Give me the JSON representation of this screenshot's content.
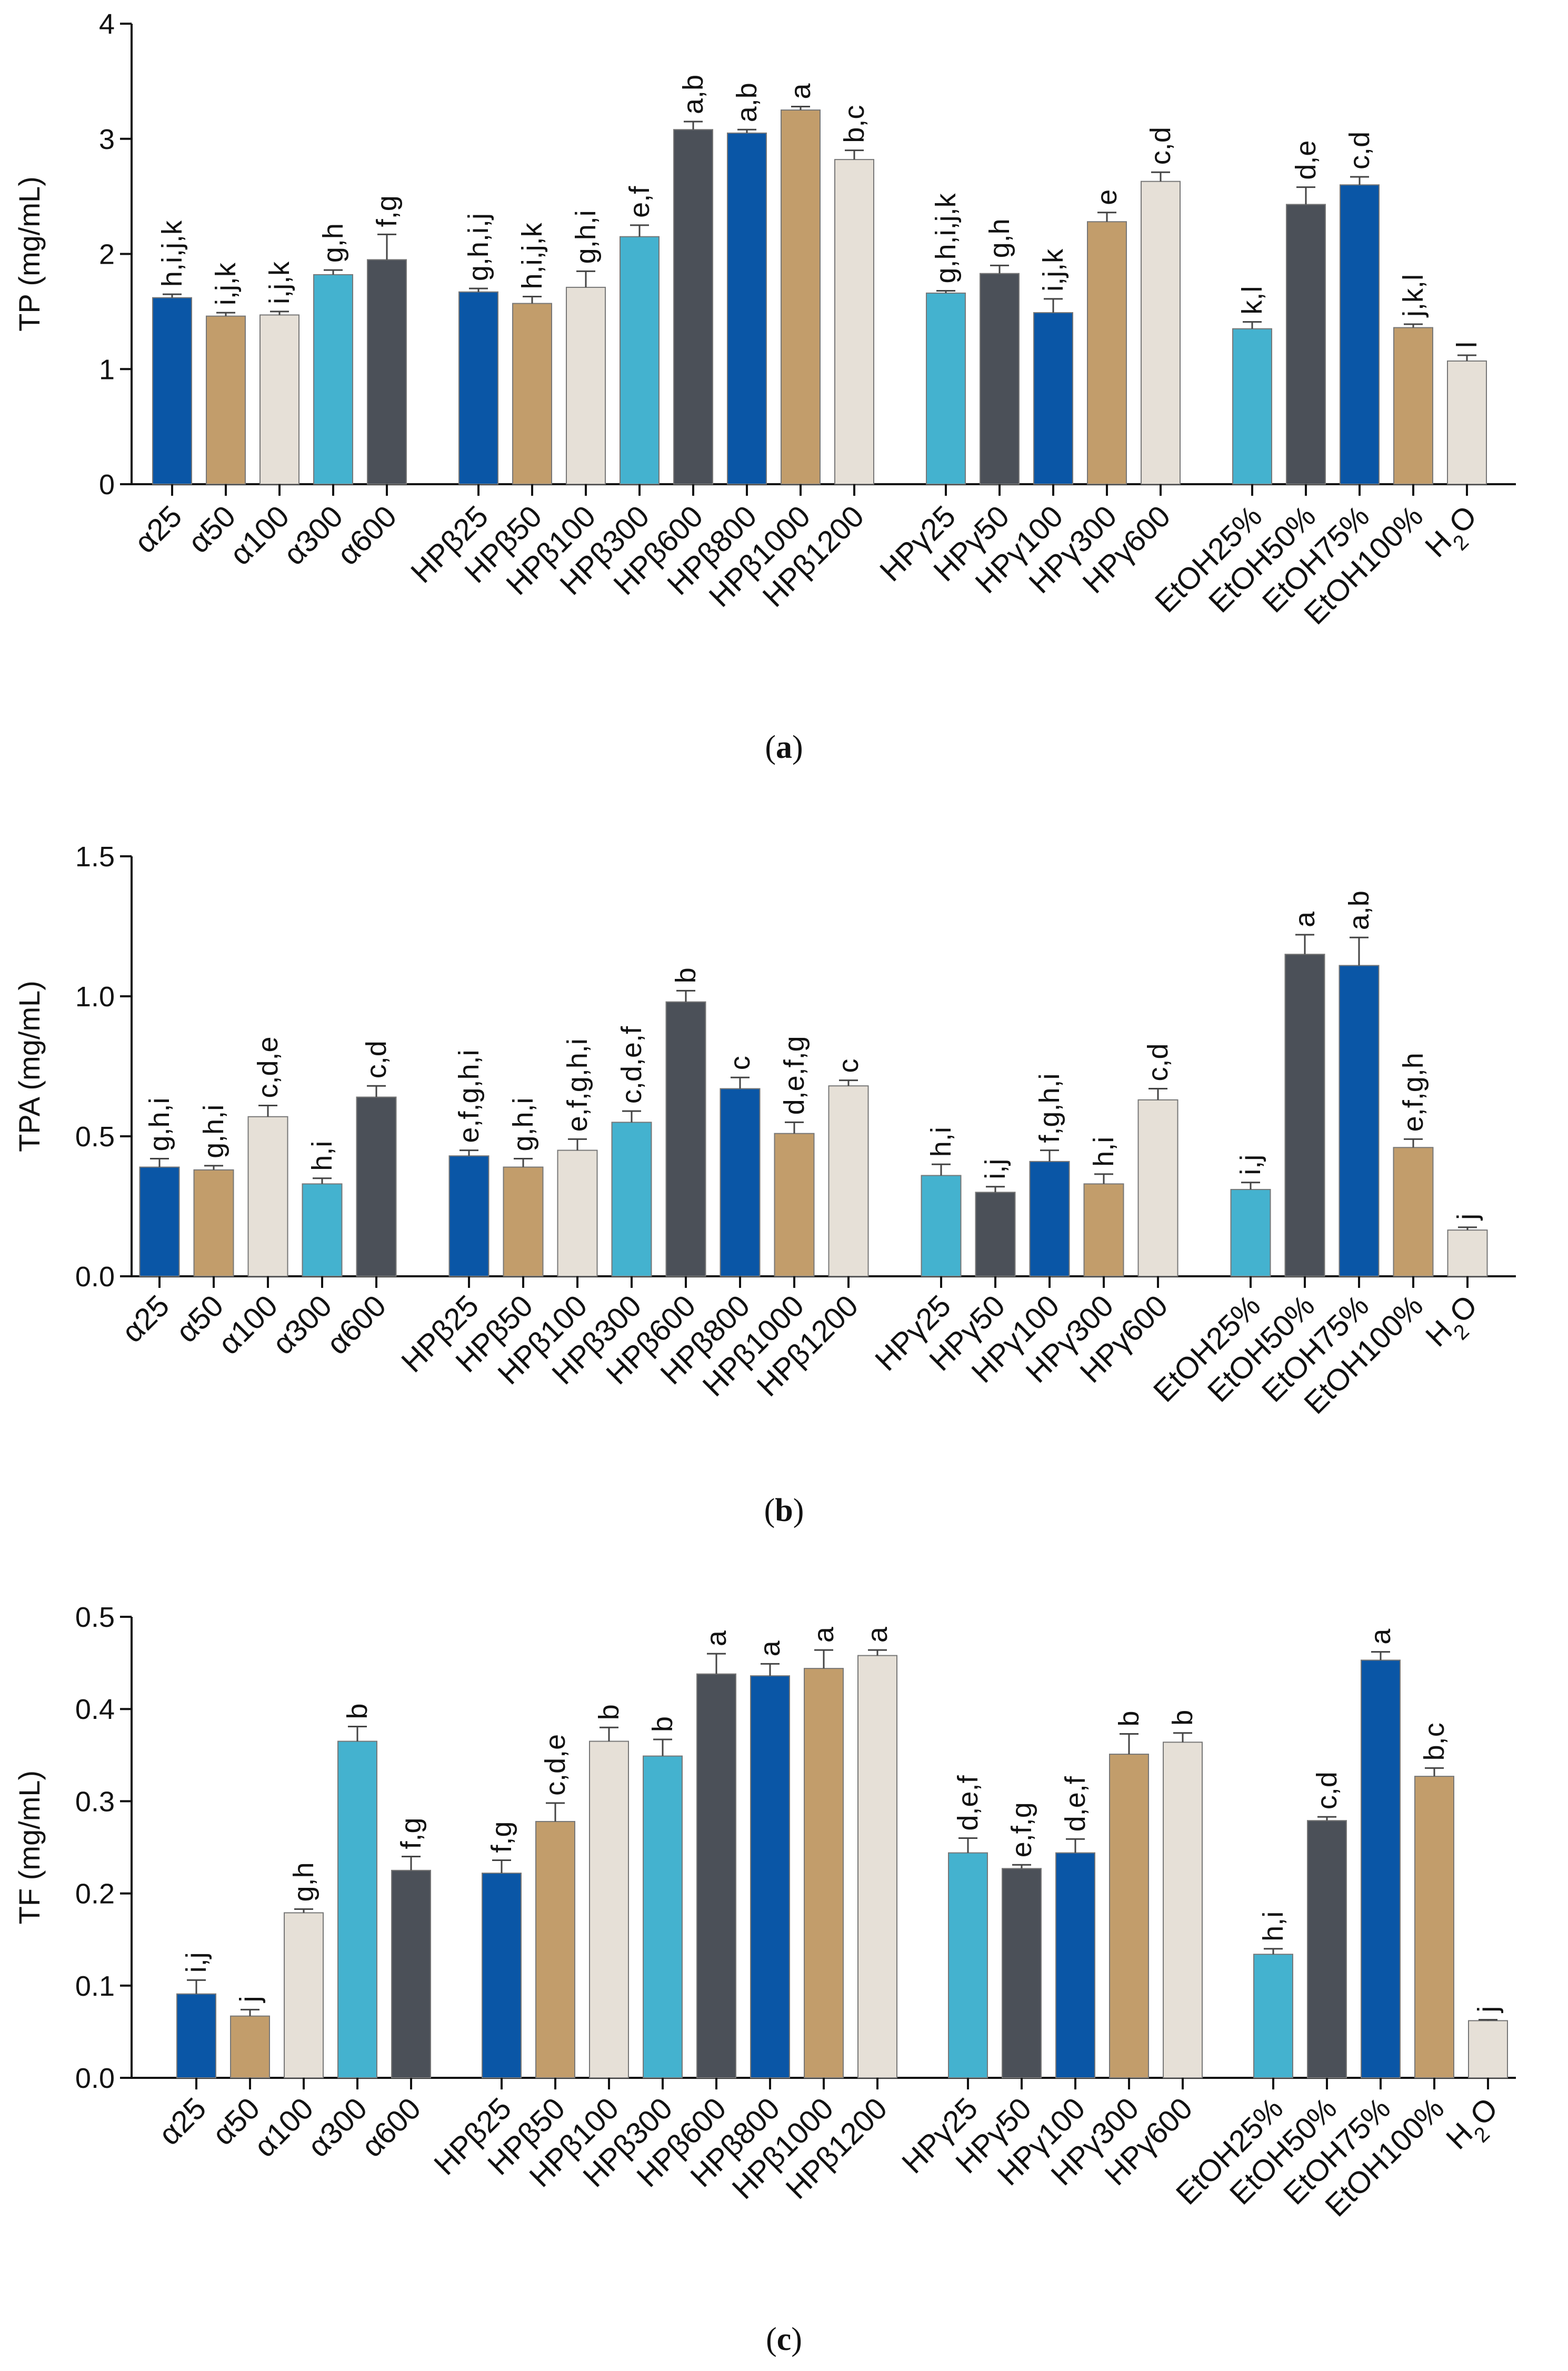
{
  "colors": {
    "dark_blue": "#0a56a6",
    "tan": "#c29d6b",
    "beige": "#e6e0d7",
    "light_blue": "#44b2cf",
    "dark_gray": "#4b5058"
  },
  "chart_data": [
    {
      "type": "bar",
      "panel": "a",
      "caption_open": "(",
      "caption_letter": "a",
      "caption_close": ")",
      "ylabel": "TP (mg/mL)",
      "ylim": [
        0,
        4
      ],
      "yticks": [
        "0",
        "1",
        "2",
        "3",
        "4"
      ],
      "groups": [
        {
          "bars": [
            {
              "label": "α25",
              "value": 1.62,
              "err": 0.03,
              "sig": "h,i,j,k",
              "color": "dark_blue"
            },
            {
              "label": "α50",
              "value": 1.46,
              "err": 0.03,
              "sig": "i,j,k",
              "color": "tan"
            },
            {
              "label": "α100",
              "value": 1.47,
              "err": 0.03,
              "sig": "i,j,k",
              "color": "beige"
            },
            {
              "label": "α300",
              "value": 1.82,
              "err": 0.04,
              "sig": "g,h",
              "color": "light_blue"
            },
            {
              "label": "α600",
              "value": 1.95,
              "err": 0.22,
              "sig": "f,g",
              "color": "dark_gray"
            }
          ]
        },
        {
          "bars": [
            {
              "label": "HPβ25",
              "value": 1.67,
              "err": 0.03,
              "sig": "g,h,i,j",
              "color": "dark_blue"
            },
            {
              "label": "HPβ50",
              "value": 1.57,
              "err": 0.06,
              "sig": "h,i,j,k",
              "color": "tan"
            },
            {
              "label": "HPβ100",
              "value": 1.71,
              "err": 0.14,
              "sig": "g,h,i",
              "color": "beige"
            },
            {
              "label": "HPβ300",
              "value": 2.15,
              "err": 0.1,
              "sig": "e,f",
              "color": "light_blue"
            },
            {
              "label": "HPβ600",
              "value": 3.08,
              "err": 0.07,
              "sig": "a,b",
              "color": "dark_gray"
            },
            {
              "label": "HPβ800",
              "value": 3.05,
              "err": 0.03,
              "sig": "a,b",
              "color": "dark_blue"
            },
            {
              "label": "HPβ1000",
              "value": 3.25,
              "err": 0.03,
              "sig": "a",
              "color": "tan"
            },
            {
              "label": "HPβ1200",
              "value": 2.82,
              "err": 0.08,
              "sig": "b,c",
              "color": "beige"
            }
          ]
        },
        {
          "bars": [
            {
              "label": "HPγ25",
              "value": 1.66,
              "err": 0.02,
              "sig": "g,h,i,j,k",
              "color": "light_blue"
            },
            {
              "label": "HPγ50",
              "value": 1.83,
              "err": 0.07,
              "sig": "g,h",
              "color": "dark_gray"
            },
            {
              "label": "HPγ100",
              "value": 1.49,
              "err": 0.12,
              "sig": "i,j,k",
              "color": "dark_blue"
            },
            {
              "label": "HPγ300",
              "value": 2.28,
              "err": 0.08,
              "sig": "e",
              "color": "tan"
            },
            {
              "label": "HPγ600",
              "value": 2.63,
              "err": 0.08,
              "sig": "c,d",
              "color": "beige"
            }
          ]
        },
        {
          "bars": [
            {
              "label": "EtOH25%",
              "value": 1.35,
              "err": 0.06,
              "sig": "k,l",
              "color": "light_blue"
            },
            {
              "label": "EtOH50%",
              "value": 2.43,
              "err": 0.15,
              "sig": "d,e",
              "color": "dark_gray"
            },
            {
              "label": "EtOH75%",
              "value": 2.6,
              "err": 0.07,
              "sig": "c,d",
              "color": "dark_blue"
            },
            {
              "label": "EtOH100%",
              "value": 1.36,
              "err": 0.03,
              "sig": "j,k,l",
              "color": "tan"
            },
            {
              "label": "H2O",
              "value": 1.07,
              "err": 0.05,
              "sig": "l",
              "color": "beige"
            }
          ]
        }
      ]
    },
    {
      "type": "bar",
      "panel": "b",
      "caption_open": "(",
      "caption_letter": "b",
      "caption_close": ")",
      "ylabel": "TPA (mg/mL)",
      "ylim": [
        0,
        1.5
      ],
      "yticks": [
        "0.0",
        "0.5",
        "1.0",
        "1.5"
      ],
      "groups": [
        {
          "bars": [
            {
              "label": "α25",
              "value": 0.39,
              "err": 0.03,
              "sig": "g,h,i",
              "color": "dark_blue"
            },
            {
              "label": "α50",
              "value": 0.38,
              "err": 0.015,
              "sig": "g,h,i",
              "color": "tan"
            },
            {
              "label": "α100",
              "value": 0.57,
              "err": 0.04,
              "sig": "c,d,e",
              "color": "beige"
            },
            {
              "label": "α300",
              "value": 0.33,
              "err": 0.02,
              "sig": "h,i",
              "color": "light_blue"
            },
            {
              "label": "α600",
              "value": 0.64,
              "err": 0.04,
              "sig": "c,d",
              "color": "dark_gray"
            }
          ]
        },
        {
          "bars": [
            {
              "label": "HPβ25",
              "value": 0.43,
              "err": 0.02,
              "sig": "e,f,g,h,i",
              "color": "dark_blue"
            },
            {
              "label": "HPβ50",
              "value": 0.39,
              "err": 0.03,
              "sig": "g,h,i",
              "color": "tan"
            },
            {
              "label": "HPβ100",
              "value": 0.45,
              "err": 0.04,
              "sig": "e,f,g,h,i",
              "color": "beige"
            },
            {
              "label": "HPβ300",
              "value": 0.55,
              "err": 0.04,
              "sig": "c,d,e,f",
              "color": "light_blue"
            },
            {
              "label": "HPβ600",
              "value": 0.98,
              "err": 0.04,
              "sig": "b",
              "color": "dark_gray"
            },
            {
              "label": "HPβ800",
              "value": 0.67,
              "err": 0.04,
              "sig": "c",
              "color": "dark_blue"
            },
            {
              "label": "HPβ1000",
              "value": 0.51,
              "err": 0.04,
              "sig": "d,e,f,g",
              "color": "tan"
            },
            {
              "label": "HPβ1200",
              "value": 0.68,
              "err": 0.02,
              "sig": "c",
              "color": "beige"
            }
          ]
        },
        {
          "bars": [
            {
              "label": "HPγ25",
              "value": 0.36,
              "err": 0.04,
              "sig": "h,i",
              "color": "light_blue"
            },
            {
              "label": "HPγ50",
              "value": 0.3,
              "err": 0.02,
              "sig": "i,j",
              "color": "dark_gray"
            },
            {
              "label": "HPγ100",
              "value": 0.41,
              "err": 0.04,
              "sig": "f,g,h,i",
              "color": "dark_blue"
            },
            {
              "label": "HPγ300",
              "value": 0.33,
              "err": 0.035,
              "sig": "h,i",
              "color": "tan"
            },
            {
              "label": "HPγ600",
              "value": 0.63,
              "err": 0.04,
              "sig": "c,d",
              "color": "beige"
            }
          ]
        },
        {
          "bars": [
            {
              "label": "EtOH25%",
              "value": 0.31,
              "err": 0.025,
              "sig": "i,j",
              "color": "light_blue"
            },
            {
              "label": "EtOH50%",
              "value": 1.15,
              "err": 0.07,
              "sig": "a",
              "color": "dark_gray"
            },
            {
              "label": "EtOH75%",
              "value": 1.11,
              "err": 0.1,
              "sig": "a,b",
              "color": "dark_blue"
            },
            {
              "label": "EtOH100%",
              "value": 0.46,
              "err": 0.03,
              "sig": "e,f,g,h",
              "color": "tan"
            },
            {
              "label": "H2O",
              "value": 0.165,
              "err": 0.01,
              "sig": "j",
              "color": "beige"
            }
          ]
        }
      ]
    },
    {
      "type": "bar",
      "panel": "c",
      "caption_open": "(",
      "caption_letter": "c",
      "caption_close": ")",
      "ylabel": "TF (mg/mL)",
      "ylim": [
        0,
        0.5
      ],
      "yticks": [
        "0.0",
        "0.1",
        "0.2",
        "0.3",
        "0.4",
        "0.5"
      ],
      "groups": [
        {
          "bars": [
            {
              "label": "α25",
              "value": 0.091,
              "err": 0.015,
              "sig": "i,j",
              "color": "dark_blue"
            },
            {
              "label": "α50",
              "value": 0.067,
              "err": 0.007,
              "sig": "j",
              "color": "tan"
            },
            {
              "label": "α100",
              "value": 0.179,
              "err": 0.004,
              "sig": "g,h",
              "color": "beige"
            },
            {
              "label": "α300",
              "value": 0.365,
              "err": 0.016,
              "sig": "b",
              "color": "light_blue"
            },
            {
              "label": "α600",
              "value": 0.225,
              "err": 0.015,
              "sig": "f,g",
              "color": "dark_gray"
            }
          ]
        },
        {
          "bars": [
            {
              "label": "HPβ25",
              "value": 0.222,
              "err": 0.014,
              "sig": "f,g",
              "color": "dark_blue"
            },
            {
              "label": "HPβ50",
              "value": 0.278,
              "err": 0.02,
              "sig": "c,d,e",
              "color": "tan"
            },
            {
              "label": "HPβ100",
              "value": 0.365,
              "err": 0.015,
              "sig": "b",
              "color": "beige"
            },
            {
              "label": "HPβ300",
              "value": 0.349,
              "err": 0.018,
              "sig": "b",
              "color": "light_blue"
            },
            {
              "label": "HPβ600",
              "value": 0.438,
              "err": 0.022,
              "sig": "a",
              "color": "dark_gray"
            },
            {
              "label": "HPβ800",
              "value": 0.436,
              "err": 0.013,
              "sig": "a",
              "color": "dark_blue"
            },
            {
              "label": "HPβ1000",
              "value": 0.444,
              "err": 0.02,
              "sig": "a",
              "color": "tan"
            },
            {
              "label": "HPβ1200",
              "value": 0.458,
              "err": 0.006,
              "sig": "a",
              "color": "beige"
            }
          ]
        },
        {
          "bars": [
            {
              "label": "HPγ25",
              "value": 0.244,
              "err": 0.016,
              "sig": "d,e,f",
              "color": "light_blue"
            },
            {
              "label": "HPγ50",
              "value": 0.227,
              "err": 0.004,
              "sig": "e,f,g",
              "color": "dark_gray"
            },
            {
              "label": "HPγ100",
              "value": 0.244,
              "err": 0.015,
              "sig": "d,e,f",
              "color": "dark_blue"
            },
            {
              "label": "HPγ300",
              "value": 0.351,
              "err": 0.022,
              "sig": "b",
              "color": "tan"
            },
            {
              "label": "HPγ600",
              "value": 0.364,
              "err": 0.01,
              "sig": "b",
              "color": "beige"
            }
          ]
        },
        {
          "bars": [
            {
              "label": "EtOH25%",
              "value": 0.134,
              "err": 0.006,
              "sig": "h,i",
              "color": "light_blue"
            },
            {
              "label": "EtOH50%",
              "value": 0.279,
              "err": 0.004,
              "sig": "c,d",
              "color": "dark_gray"
            },
            {
              "label": "EtOH75%",
              "value": 0.453,
              "err": 0.009,
              "sig": "a",
              "color": "dark_blue"
            },
            {
              "label": "EtOH100%",
              "value": 0.327,
              "err": 0.009,
              "sig": "b,c",
              "color": "tan"
            },
            {
              "label": "H2O",
              "value": 0.062,
              "err": 0.001,
              "sig": "j",
              "color": "beige"
            }
          ]
        }
      ]
    }
  ]
}
